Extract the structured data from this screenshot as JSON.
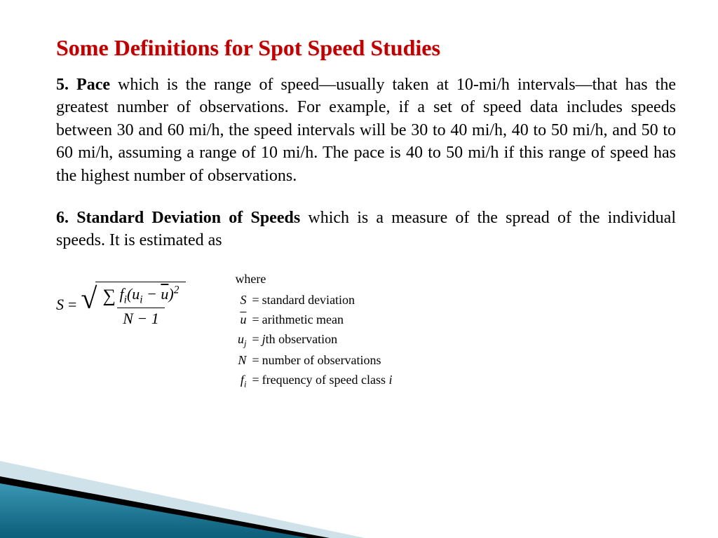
{
  "title": "Some Definitions for Spot Speed Studies",
  "title_color": "#c00000",
  "body_fontsize": 24,
  "para1_lead": "5. Pace",
  "para1_body": " which is the range of speed—usually taken at 10-mi/h intervals—that has the greatest number of observations. For example, if a set of speed data includes speeds between 30 and 60 mi/h, the speed intervals will be 30 to 40 mi/h, 40 to 50 mi/h, and 50 to 60 mi/h, assuming a range of 10 mi/h. The pace is 40 to 50 mi/h if this range of speed has the highest number of observations.",
  "para2_lead": "6. Standard Deviation of Speeds",
  "para2_body": " which is a measure of the spread of the individual speeds. It is estimated as",
  "formula": {
    "lhs": "S",
    "eq": "=",
    "numerator_pre_sum": "∑",
    "numerator_body_html": "f<sub class='sub'>i</sub>(u<sub class='sub'>i</sub> − <span class='bar'>u</span>)<sup class='sup'>2</sup>",
    "denominator_html": "N − 1"
  },
  "where_label": "where",
  "where": [
    {
      "sym_html": "S",
      "desc": "standard deviation"
    },
    {
      "sym_html": "<span class='bar'>u</span>",
      "desc": "arithmetic mean"
    },
    {
      "sym_html": "u<sub class='sub'>j</sub>",
      "desc": "jth observation"
    },
    {
      "sym_html": "N",
      "desc": "number of observations"
    },
    {
      "sym_html": "f<sub class='sub'>i</sub>",
      "desc": "frequency of speed class i"
    }
  ],
  "decor_colors": {
    "light": "#cfe2ea",
    "teal_top": "#2f8aa8",
    "teal_bottom": "#0b5d78",
    "black": "#000000"
  }
}
